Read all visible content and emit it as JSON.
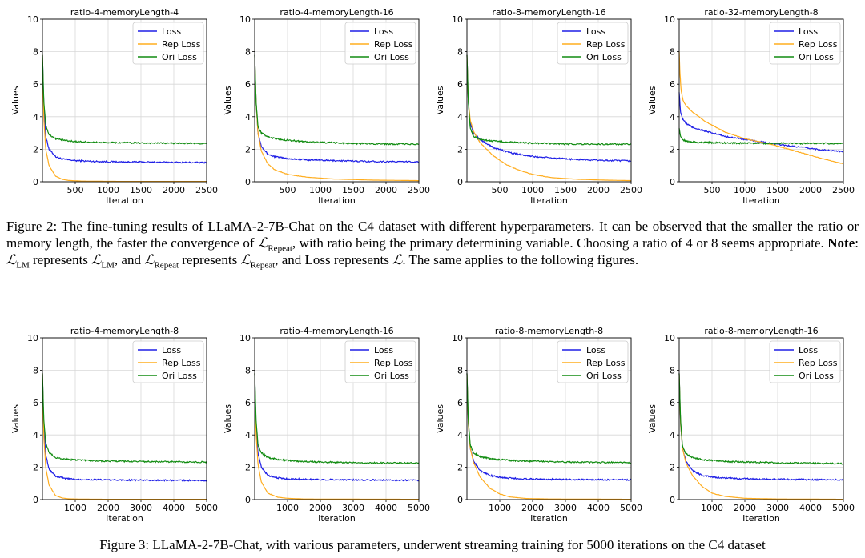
{
  "colors": {
    "loss": "#1f1fe6",
    "rep_loss": "#ffad1f",
    "ori_loss": "#118c11",
    "grid": "#d8d8d8",
    "axis": "#000000"
  },
  "legend_labels": [
    "Loss",
    "Rep Loss",
    "Ori Loss"
  ],
  "figure2": {
    "caption": {
      "label": "Figure 2:",
      "t1": " The fine-tuning results of LLaMA-2-7B-Chat on the C4 dataset with different hyperparameters. It can be observed that the smaller the ratio or memory length, the faster the convergence of ",
      "sym_L": "ℒ",
      "sub_repeat": "Repeat",
      "t2": ", with ratio being the primary determining variable. Choosing a ratio of 4 or 8 seems appropriate. ",
      "note": "Note",
      "t3": ": ",
      "sub_lm": "LM",
      "t4": " represents ",
      "t5": ", and ",
      "t6": " represents ",
      "t7": ", and Loss represents ",
      "t8": ". The same applies to the following figures."
    }
  },
  "figure3": {
    "caption": "Figure 3: LLaMA-2-7B-Chat, with various parameters, underwent streaming training for 5000 iterations on the C4 dataset"
  },
  "chart_data": [
    {
      "type": "line",
      "title": "ratio-4-memoryLength-4",
      "xlabel": "Iteration",
      "ylabel": "Values",
      "xlim": [
        0,
        2500
      ],
      "ylim": [
        0,
        10
      ],
      "xticks": [
        500,
        1000,
        1500,
        2000,
        2500
      ],
      "yticks": [
        0,
        2,
        4,
        6,
        8,
        10
      ],
      "grid": true,
      "legend": "top-right",
      "series": [
        {
          "name": "Loss",
          "x": [
            0,
            20,
            50,
            100,
            200,
            300,
            500,
            800,
            1200,
            1800,
            2500
          ],
          "values": [
            7.8,
            4.8,
            2.8,
            2.0,
            1.55,
            1.4,
            1.3,
            1.25,
            1.22,
            1.2,
            1.18
          ]
        },
        {
          "name": "Rep Loss",
          "x": [
            0,
            20,
            50,
            100,
            200,
            300,
            400,
            600,
            800,
            1200,
            2500
          ],
          "values": [
            7.8,
            4.0,
            2.0,
            1.0,
            0.35,
            0.15,
            0.08,
            0.04,
            0.03,
            0.02,
            0.02
          ]
        },
        {
          "name": "Ori Loss",
          "x": [
            0,
            20,
            50,
            100,
            200,
            400,
            800,
            1500,
            2500
          ],
          "values": [
            7.8,
            5.0,
            3.5,
            2.9,
            2.65,
            2.5,
            2.42,
            2.38,
            2.35
          ]
        }
      ]
    },
    {
      "type": "line",
      "title": "ratio-4-memoryLength-16",
      "xlabel": "Iteration",
      "ylabel": "Values",
      "xlim": [
        0,
        2500
      ],
      "ylim": [
        0,
        10
      ],
      "xticks": [
        500,
        1000,
        1500,
        2000,
        2500
      ],
      "yticks": [
        0,
        2,
        4,
        6,
        8,
        10
      ],
      "grid": true,
      "legend": "top-right",
      "series": [
        {
          "name": "Loss",
          "x": [
            0,
            20,
            50,
            100,
            200,
            300,
            500,
            800,
            1200,
            1800,
            2500
          ],
          "values": [
            7.8,
            5.0,
            3.0,
            2.2,
            1.7,
            1.55,
            1.42,
            1.35,
            1.3,
            1.25,
            1.22
          ]
        },
        {
          "name": "Rep Loss",
          "x": [
            0,
            20,
            50,
            100,
            200,
            300,
            500,
            800,
            1200,
            1800,
            2500
          ],
          "values": [
            7.8,
            5.0,
            3.0,
            1.9,
            1.1,
            0.75,
            0.45,
            0.28,
            0.17,
            0.1,
            0.07
          ]
        },
        {
          "name": "Ori Loss",
          "x": [
            0,
            20,
            50,
            100,
            200,
            400,
            800,
            1500,
            2500
          ],
          "values": [
            7.8,
            5.0,
            3.4,
            3.0,
            2.75,
            2.6,
            2.45,
            2.35,
            2.3
          ]
        }
      ]
    },
    {
      "type": "line",
      "title": "ratio-8-memoryLength-16",
      "xlabel": "Iteration",
      "ylabel": "Values",
      "xlim": [
        0,
        2500
      ],
      "ylim": [
        0,
        10
      ],
      "xticks": [
        500,
        1000,
        1500,
        2000,
        2500
      ],
      "yticks": [
        0,
        2,
        4,
        6,
        8,
        10
      ],
      "grid": true,
      "legend": "top-right",
      "series": [
        {
          "name": "Loss",
          "x": [
            0,
            20,
            50,
            100,
            200,
            400,
            700,
            1000,
            1500,
            2000,
            2500
          ],
          "values": [
            7.8,
            5.0,
            3.6,
            3.0,
            2.6,
            2.1,
            1.75,
            1.55,
            1.4,
            1.32,
            1.28
          ]
        },
        {
          "name": "Rep Loss",
          "x": [
            0,
            20,
            50,
            100,
            200,
            400,
            600,
            800,
            1000,
            1300,
            1700,
            2100,
            2500
          ],
          "values": [
            7.8,
            5.0,
            3.8,
            3.1,
            2.4,
            1.6,
            1.05,
            0.7,
            0.45,
            0.25,
            0.15,
            0.1,
            0.07
          ]
        },
        {
          "name": "Ori Loss",
          "x": [
            0,
            20,
            50,
            100,
            200,
            400,
            800,
            1500,
            2500
          ],
          "values": [
            7.8,
            5.0,
            3.3,
            2.8,
            2.6,
            2.5,
            2.4,
            2.32,
            2.3
          ]
        }
      ]
    },
    {
      "type": "line",
      "title": "ratio-32-memoryLength-8",
      "xlabel": "Iteration",
      "ylabel": "Values",
      "xlim": [
        0,
        2500
      ],
      "ylim": [
        0,
        10
      ],
      "xticks": [
        500,
        1000,
        1500,
        2000,
        2500
      ],
      "yticks": [
        0,
        2,
        4,
        6,
        8,
        10
      ],
      "grid": true,
      "legend": "top-right",
      "series": [
        {
          "name": "Loss",
          "x": [
            0,
            20,
            50,
            100,
            200,
            400,
            700,
            1000,
            1400,
            1800,
            2200,
            2500
          ],
          "values": [
            5.5,
            4.3,
            3.9,
            3.6,
            3.35,
            3.1,
            2.8,
            2.6,
            2.35,
            2.15,
            1.95,
            1.85
          ]
        },
        {
          "name": "Rep Loss",
          "x": [
            0,
            10,
            30,
            60,
            100,
            200,
            400,
            700,
            1000,
            1400,
            1800,
            2200,
            2500
          ],
          "values": [
            8.0,
            6.8,
            5.6,
            5.0,
            4.7,
            4.3,
            3.7,
            3.05,
            2.65,
            2.3,
            1.85,
            1.4,
            1.1
          ]
        },
        {
          "name": "Ori Loss",
          "x": [
            0,
            20,
            50,
            100,
            300,
            800,
            1500,
            2500
          ],
          "values": [
            3.3,
            2.8,
            2.6,
            2.5,
            2.42,
            2.38,
            2.36,
            2.35
          ]
        }
      ]
    },
    {
      "type": "line",
      "title": "ratio-4-memoryLength-8",
      "xlabel": "Iteration",
      "ylabel": "Values",
      "xlim": [
        0,
        5000
      ],
      "ylim": [
        0,
        10
      ],
      "xticks": [
        1000,
        2000,
        3000,
        4000,
        5000
      ],
      "yticks": [
        0,
        2,
        4,
        6,
        8,
        10
      ],
      "grid": true,
      "legend": "top-right",
      "series": [
        {
          "name": "Loss",
          "x": [
            0,
            40,
            100,
            200,
            400,
            700,
            1000,
            2000,
            3000,
            5000
          ],
          "values": [
            7.8,
            4.5,
            2.8,
            1.9,
            1.45,
            1.3,
            1.25,
            1.22,
            1.2,
            1.18
          ]
        },
        {
          "name": "Rep Loss",
          "x": [
            0,
            40,
            100,
            200,
            400,
            600,
            800,
            1200,
            2000,
            5000
          ],
          "values": [
            7.8,
            4.0,
            2.0,
            0.9,
            0.25,
            0.1,
            0.05,
            0.03,
            0.02,
            0.02
          ]
        },
        {
          "name": "Ori Loss",
          "x": [
            0,
            40,
            100,
            200,
            400,
            800,
            1500,
            3000,
            5000
          ],
          "values": [
            7.8,
            5.0,
            3.5,
            2.9,
            2.6,
            2.48,
            2.4,
            2.35,
            2.32
          ]
        }
      ]
    },
    {
      "type": "line",
      "title": "ratio-4-memoryLength-16",
      "xlabel": "Iteration",
      "ylabel": "Values",
      "xlim": [
        0,
        5000
      ],
      "ylim": [
        0,
        10
      ],
      "xticks": [
        1000,
        2000,
        3000,
        4000,
        5000
      ],
      "yticks": [
        0,
        2,
        4,
        6,
        8,
        10
      ],
      "grid": true,
      "legend": "top-right",
      "series": [
        {
          "name": "Loss",
          "x": [
            0,
            40,
            100,
            200,
            400,
            700,
            1000,
            2000,
            3000,
            5000
          ],
          "values": [
            7.8,
            4.6,
            2.9,
            2.0,
            1.5,
            1.35,
            1.28,
            1.24,
            1.22,
            1.2
          ]
        },
        {
          "name": "Rep Loss",
          "x": [
            0,
            40,
            100,
            200,
            400,
            700,
            1000,
            1500,
            2500,
            5000
          ],
          "values": [
            7.8,
            4.2,
            2.2,
            1.1,
            0.4,
            0.15,
            0.08,
            0.04,
            0.03,
            0.02
          ]
        },
        {
          "name": "Ori Loss",
          "x": [
            0,
            40,
            100,
            200,
            400,
            800,
            1500,
            3000,
            5000
          ],
          "values": [
            7.8,
            5.0,
            3.4,
            2.9,
            2.6,
            2.45,
            2.35,
            2.28,
            2.25
          ]
        }
      ]
    },
    {
      "type": "line",
      "title": "ratio-8-memoryLength-8",
      "xlabel": "Iteration",
      "ylabel": "Values",
      "xlim": [
        0,
        5000
      ],
      "ylim": [
        0,
        10
      ],
      "xticks": [
        1000,
        2000,
        3000,
        4000,
        5000
      ],
      "yticks": [
        0,
        2,
        4,
        6,
        8,
        10
      ],
      "grid": true,
      "legend": "top-right",
      "series": [
        {
          "name": "Loss",
          "x": [
            0,
            40,
            100,
            200,
            400,
            700,
            1000,
            1500,
            2500,
            5000
          ],
          "values": [
            7.8,
            4.8,
            3.2,
            2.4,
            1.8,
            1.5,
            1.38,
            1.3,
            1.25,
            1.22
          ]
        },
        {
          "name": "Rep Loss",
          "x": [
            0,
            40,
            100,
            200,
            400,
            700,
            1000,
            1300,
            1800,
            2500,
            5000
          ],
          "values": [
            7.8,
            4.8,
            3.2,
            2.3,
            1.4,
            0.7,
            0.35,
            0.17,
            0.07,
            0.04,
            0.02
          ]
        },
        {
          "name": "Ori Loss",
          "x": [
            0,
            40,
            100,
            200,
            400,
            800,
            1500,
            3000,
            5000
          ],
          "values": [
            7.8,
            5.0,
            3.4,
            2.9,
            2.65,
            2.5,
            2.4,
            2.32,
            2.28
          ]
        }
      ]
    },
    {
      "type": "line",
      "title": "ratio-8-memoryLength-16",
      "xlabel": "Iteration",
      "ylabel": "Values",
      "xlim": [
        0,
        5000
      ],
      "ylim": [
        0,
        10
      ],
      "xticks": [
        1000,
        2000,
        3000,
        4000,
        5000
      ],
      "yticks": [
        0,
        2,
        4,
        6,
        8,
        10
      ],
      "grid": true,
      "legend": "top-right",
      "series": [
        {
          "name": "Loss",
          "x": [
            0,
            40,
            100,
            200,
            400,
            700,
            1000,
            1500,
            2500,
            5000
          ],
          "values": [
            7.8,
            4.8,
            3.2,
            2.4,
            1.8,
            1.5,
            1.4,
            1.32,
            1.26,
            1.22
          ]
        },
        {
          "name": "Rep Loss",
          "x": [
            0,
            40,
            100,
            200,
            400,
            700,
            1000,
            1400,
            2000,
            3000,
            5000
          ],
          "values": [
            7.8,
            4.8,
            3.2,
            2.3,
            1.5,
            0.8,
            0.4,
            0.2,
            0.08,
            0.04,
            0.02
          ]
        },
        {
          "name": "Ori Loss",
          "x": [
            0,
            40,
            100,
            200,
            400,
            800,
            1500,
            3000,
            5000
          ],
          "values": [
            7.8,
            5.0,
            3.3,
            2.85,
            2.6,
            2.45,
            2.35,
            2.28,
            2.22
          ]
        }
      ]
    }
  ]
}
